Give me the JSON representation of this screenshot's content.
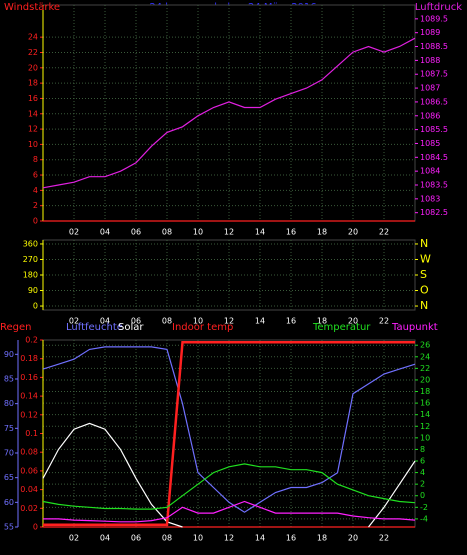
{
  "chart_data": [
    {
      "type": "line",
      "title": "24 hour graph day: 24 März 2016",
      "x": [
        0,
        1,
        2,
        3,
        4,
        5,
        6,
        7,
        8,
        9,
        10,
        11,
        12,
        13,
        14,
        15,
        16,
        17,
        18,
        19,
        20,
        21,
        22,
        23,
        24
      ],
      "xlim": [
        0,
        24
      ],
      "xticks": [
        {
          "value": 2,
          "label": "02"
        },
        {
          "value": 4,
          "label": "04"
        },
        {
          "value": 6,
          "label": "06"
        },
        {
          "value": 8,
          "label": "08"
        },
        {
          "value": 10,
          "label": "10"
        },
        {
          "value": 12,
          "label": "12"
        },
        {
          "value": 14,
          "label": "14"
        },
        {
          "value": 16,
          "label": "16"
        },
        {
          "value": 18,
          "label": "18"
        },
        {
          "value": 20,
          "label": "20"
        },
        {
          "value": 22,
          "label": "22"
        }
      ],
      "ylim": [
        0,
        28.2
      ],
      "yticks": [
        0,
        2,
        4,
        6,
        8,
        10,
        12,
        14,
        16,
        18,
        20,
        22,
        24
      ],
      "ytick_color": "#ff2020",
      "y2lim": [
        1082.2,
        1090.0
      ],
      "y2ticks": [
        1082.5,
        1083,
        1083.5,
        1084,
        1084.5,
        1085,
        1085.5,
        1086,
        1086.5,
        1087,
        1087.5,
        1088,
        1088.5,
        1089,
        1089.5
      ],
      "y2tick_color": "#ff20ff",
      "grid": "y",
      "series": [
        {
          "name": "Windstärke",
          "color": "#ff2020",
          "axis": "y",
          "values": [
            0,
            0,
            0,
            0,
            0,
            0,
            0,
            0,
            0,
            0,
            0,
            0,
            0,
            0,
            0,
            0,
            0,
            0,
            0,
            0,
            0,
            0,
            0,
            0,
            0
          ]
        },
        {
          "name": "Luftdruck",
          "color": "#e020e0",
          "axis": "y2",
          "values": [
            1083.4,
            1083.5,
            1083.6,
            1083.8,
            1083.8,
            1084.0,
            1084.3,
            1084.9,
            1085.4,
            1085.6,
            1086.0,
            1086.3,
            1086.5,
            1086.3,
            1086.3,
            1086.6,
            1086.8,
            1087.0,
            1087.3,
            1087.8,
            1088.3,
            1088.5,
            1088.3,
            1088.5,
            1088.8
          ]
        }
      ]
    },
    {
      "type": "line",
      "x": [
        0,
        1,
        2,
        3,
        4,
        5,
        6,
        7,
        8,
        9,
        10,
        11,
        12,
        13,
        14,
        15,
        16,
        17,
        18,
        19,
        20,
        21,
        22,
        23,
        24
      ],
      "xlim": [
        0,
        24
      ],
      "xticks": [
        {
          "value": 2,
          "label": "02"
        },
        {
          "value": 4,
          "label": "04"
        },
        {
          "value": 6,
          "label": "06"
        },
        {
          "value": 8,
          "label": "08"
        },
        {
          "value": 10,
          "label": "10"
        },
        {
          "value": 12,
          "label": "12"
        },
        {
          "value": 14,
          "label": "14"
        },
        {
          "value": 16,
          "label": "16"
        },
        {
          "value": 18,
          "label": "18"
        },
        {
          "value": 20,
          "label": "20"
        },
        {
          "value": 22,
          "label": "22"
        }
      ],
      "ylim": [
        -23,
        383
      ],
      "yticks": [
        0,
        90,
        180,
        270,
        360
      ],
      "ytick_color": "#ffff00",
      "y2lim": [
        -23,
        383
      ],
      "y2ticks": [
        {
          "value": 360,
          "label": "N"
        },
        {
          "value": 270,
          "label": "W"
        },
        {
          "value": 180,
          "label": "S"
        },
        {
          "value": 90,
          "label": "O"
        },
        {
          "value": 0,
          "label": "N"
        }
      ],
      "y2tick_color": "#ffff00",
      "grid": "y",
      "series": []
    },
    {
      "type": "line",
      "x": [
        0,
        1,
        2,
        3,
        4,
        5,
        6,
        7,
        8,
        9,
        10,
        11,
        12,
        13,
        14,
        15,
        16,
        17,
        18,
        19,
        20,
        21,
        22,
        23,
        24
      ],
      "xlim": [
        0,
        24
      ],
      "xticks": [
        {
          "value": 2,
          "label": "02"
        },
        {
          "value": 4,
          "label": "04"
        },
        {
          "value": 6,
          "label": "06"
        },
        {
          "value": 8,
          "label": "08"
        },
        {
          "value": 10,
          "label": "10"
        },
        {
          "value": 12,
          "label": "12"
        },
        {
          "value": 14,
          "label": "14"
        },
        {
          "value": 16,
          "label": "16"
        },
        {
          "value": 18,
          "label": "18"
        },
        {
          "value": 20,
          "label": "20"
        },
        {
          "value": 22,
          "label": "22"
        }
      ],
      "ylim": [
        0,
        0.2
      ],
      "yticks": [
        0,
        0.02,
        0.04,
        0.06,
        0.08,
        0.1,
        0.12,
        0.14,
        0.16,
        0.18,
        0.2
      ],
      "ytick_color": "#ff2020",
      "y2lim": [
        -5.4,
        26.9
      ],
      "y2ticks": [
        -4,
        -2,
        0,
        2,
        4,
        6,
        8,
        10,
        12,
        14,
        16,
        18,
        20,
        22,
        24,
        26
      ],
      "y2tick_color": "#20e020",
      "y3lim": [
        55,
        92.9
      ],
      "y3ticks": [
        55,
        60,
        65,
        70,
        75,
        80,
        85,
        90
      ],
      "y3tick_color": "#7070ff",
      "grid": "y2",
      "series": [
        {
          "name": "Regen",
          "color": "#ff2020",
          "axis": "y",
          "values": [
            0,
            0,
            0,
            0,
            0,
            0,
            0,
            0,
            0,
            0,
            0,
            0,
            0,
            0,
            0,
            0,
            0,
            0,
            0,
            0,
            0,
            0,
            0,
            0,
            0
          ]
        },
        {
          "name": "Luftfeuchte",
          "color": "#7070ff",
          "axis": "y3",
          "values": [
            87,
            88,
            89,
            91,
            91.5,
            91.5,
            91.5,
            91.5,
            91,
            80,
            66,
            63,
            60,
            58,
            60,
            62,
            63,
            63,
            64,
            66,
            82,
            84,
            86,
            87,
            88
          ]
        },
        {
          "name": "Solar",
          "color": "#ffffff",
          "axis": "y2",
          "values": [
            3,
            8,
            11.5,
            12.5,
            11.5,
            8,
            3,
            -1.5,
            -4.5,
            -5.4,
            null,
            null,
            null,
            null,
            null,
            null,
            null,
            null,
            null,
            null,
            null,
            -5.4,
            -2,
            2,
            6
          ]
        },
        {
          "name": "Indoor temp",
          "color": "#ff2020",
          "axis": "y2",
          "values": [
            -5,
            -5,
            -5,
            -5,
            -5,
            -5,
            -5,
            -5,
            -5,
            26.5,
            26.5,
            26.5,
            26.5,
            26.5,
            26.5,
            26.5,
            26.5,
            26.5,
            26.5,
            26.5,
            26.5,
            26.5,
            26.5,
            26.5,
            26.5
          ]
        },
        {
          "name": "Temperatur",
          "color": "#20e020",
          "axis": "y2",
          "values": [
            -1,
            -1.5,
            -1.8,
            -2,
            -2.2,
            -2.2,
            -2.3,
            -2.3,
            -2,
            0,
            2,
            4,
            5,
            5.5,
            5,
            5,
            4.5,
            4.5,
            4,
            2,
            1,
            0,
            -0.5,
            -1,
            -1.2
          ]
        },
        {
          "name": "Taupunkt",
          "color": "#ff20ff",
          "axis": "y2",
          "values": [
            -4,
            -4,
            -4.2,
            -4.3,
            -4.4,
            -4.5,
            -4.5,
            -4.3,
            -3.8,
            -2,
            -3,
            -3,
            -2,
            -1,
            -2,
            -3,
            -3,
            -3,
            -3,
            -3,
            -3.5,
            -3.8,
            -4,
            -4,
            -4.2
          ]
        }
      ]
    }
  ]
}
